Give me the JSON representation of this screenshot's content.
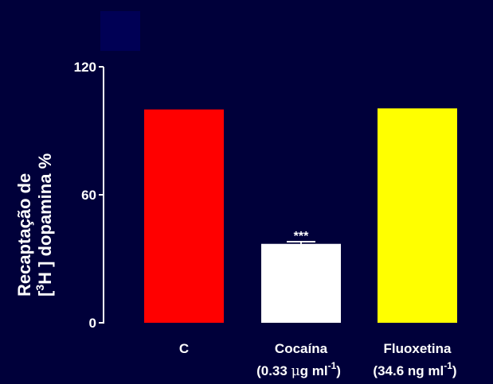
{
  "chart_data": {
    "type": "bar",
    "categories": [
      "C",
      "Cocaína",
      "Fluoxetina"
    ],
    "category_sublabels": [
      "",
      {
        "pre": "(0.33 ",
        "mu": "μ",
        "unit": "g ml",
        "sup": "-1",
        "post": ")"
      },
      {
        "pre": "(34.6 ng ml",
        "sup": "-1",
        "post": ")"
      }
    ],
    "values": [
      100,
      37,
      100.5
    ],
    "error": [
      0,
      1,
      0
    ],
    "bar_colors": [
      "#ff0000",
      "#ffffff",
      "#ffff00"
    ],
    "annotations": [
      "",
      "***",
      ""
    ],
    "ylim": [
      0,
      120
    ],
    "yticks": [
      0,
      60,
      120
    ],
    "ylabel_line1": "Recaptação de",
    "ylabel_line2": {
      "open": "[",
      "sup": "3",
      "main": "H ] dopamina %"
    },
    "legend_swatch_color": "#000055",
    "grid": false
  }
}
